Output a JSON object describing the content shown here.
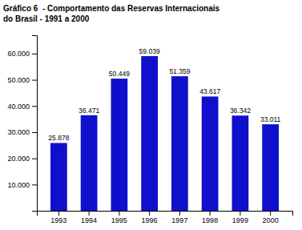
{
  "chart_data": {
    "type": "bar",
    "title": [
      "Gráfico 6  - Comportamento das Reservas Internacionais",
      "do Brasil - 1991 a 2000"
    ],
    "categories": [
      "1993",
      "1994",
      "1995",
      "1996",
      "1997",
      "1998",
      "1999",
      "2000"
    ],
    "values": [
      25878,
      36471,
      50449,
      59039,
      51359,
      43617,
      36342,
      33011
    ],
    "value_labels": [
      "25.878",
      "36.471",
      "50.449",
      "59.039",
      "51.359",
      "43.617",
      "36.342",
      "33.011"
    ],
    "data_labels": true,
    "color": "#1010CC",
    "ylim": [
      0,
      67000
    ],
    "yticks": [
      {
        "value": 10000,
        "label": "10.000"
      },
      {
        "value": 20000,
        "label": "20.000"
      },
      {
        "value": 30000,
        "label": "30.000"
      },
      {
        "value": 40000,
        "label": "40.000"
      },
      {
        "value": 50000,
        "label": "50.000"
      },
      {
        "value": 60000,
        "label": "60.000"
      }
    ],
    "grid": false
  }
}
